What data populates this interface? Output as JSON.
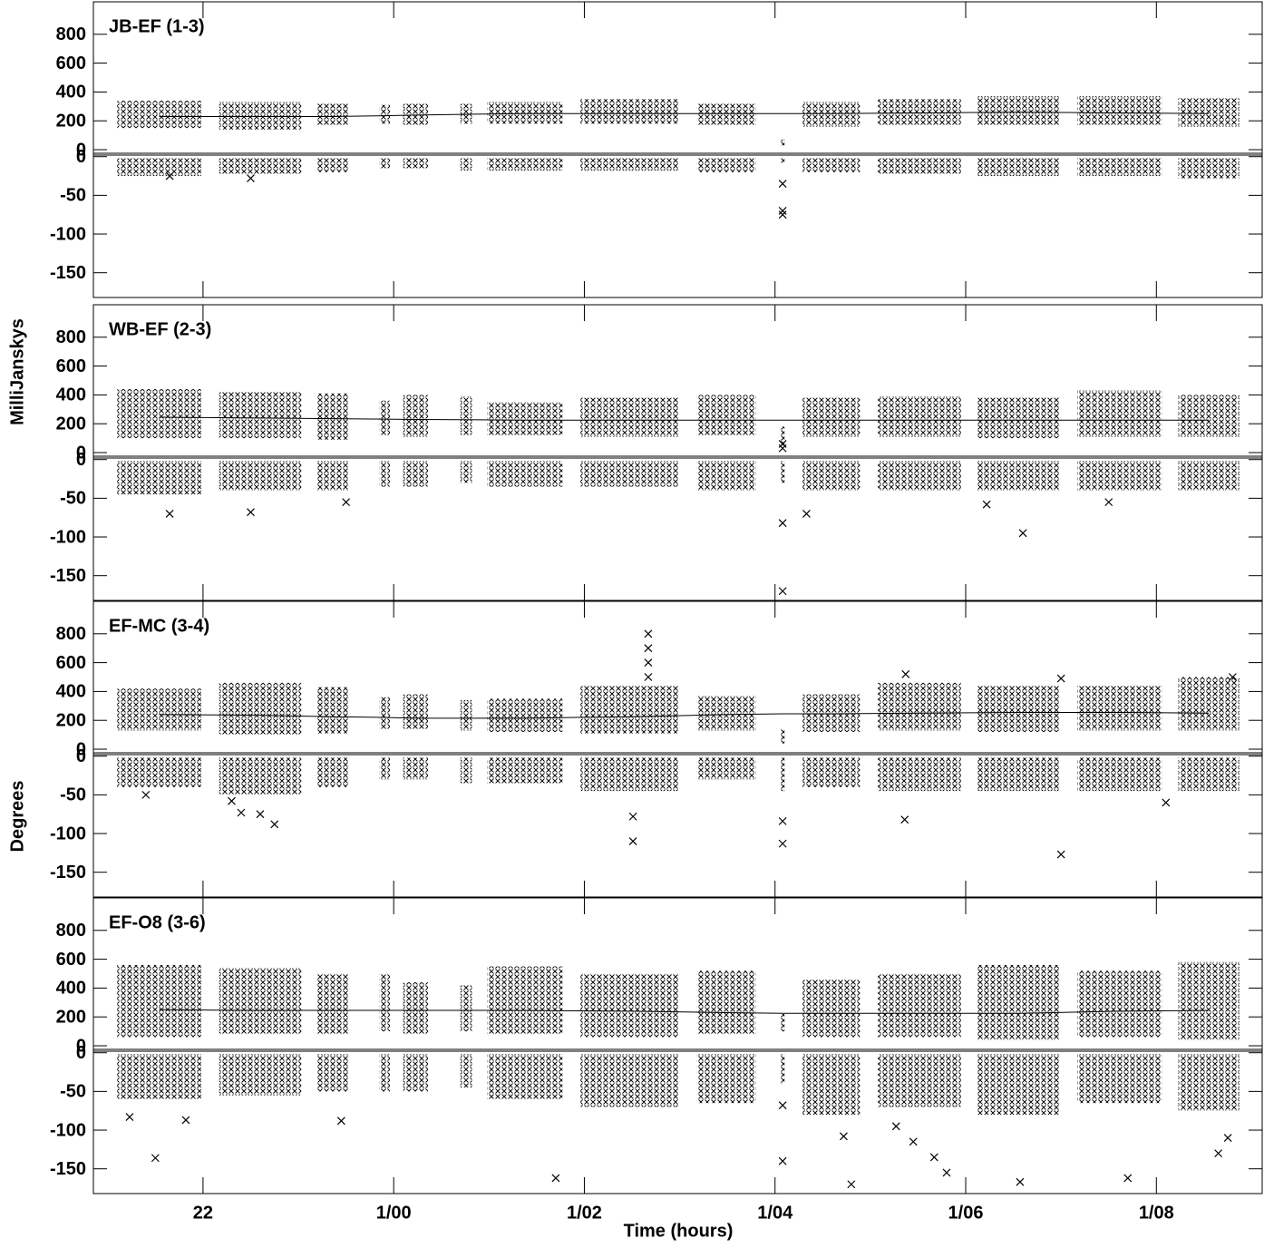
{
  "chart_data": {
    "type": "vplot",
    "xlabel": "Time (hours)",
    "ylabel_top": "MilliJanskys",
    "ylabel_bottom": "Degrees",
    "xlim": [
      20.85,
      33.11
    ],
    "xticks": [
      22,
      {
        "value": 24,
        "label": "1/00"
      },
      {
        "value": 26,
        "label": "1/02"
      },
      {
        "value": 28,
        "label": "1/04"
      },
      {
        "value": 30,
        "label": "1/06"
      },
      {
        "value": 32,
        "label": "1/08"
      }
    ],
    "amp_ylim": [
      -25,
      1025
    ],
    "amp_yticks": [
      0,
      200,
      400,
      600,
      800
    ],
    "phase_ylim": [
      -182,
      2
    ],
    "phase_yticks": [
      0,
      -50,
      -100,
      -150
    ],
    "scan_start": [
      21.1,
      22.17,
      23.19,
      23.85,
      24.1,
      24.7,
      24.98,
      25.96,
      27.18,
      28.06,
      28.29,
      29.08,
      30.12,
      31.17,
      32.23
    ],
    "scan_end": [
      21.98,
      23.03,
      23.52,
      23.96,
      24.36,
      24.82,
      25.77,
      26.99,
      27.8,
      28.1,
      28.89,
      29.95,
      30.99,
      32.06,
      32.87
    ],
    "model_x": [
      21.54,
      22.6,
      23.36,
      23.9,
      24.23,
      24.76,
      25.38,
      26.48,
      27.49,
      28.08,
      28.59,
      29.52,
      30.56,
      31.62,
      32.55
    ],
    "panels": [
      {
        "title": "JB-EF (1-3)",
        "amp_low": [
          150,
          140,
          170,
          180,
          170,
          180,
          180,
          180,
          170,
          30,
          160,
          170,
          170,
          170,
          160
        ],
        "amp_high": [
          340,
          330,
          320,
          310,
          320,
          320,
          330,
          350,
          320,
          70,
          330,
          350,
          370,
          370,
          360
        ],
        "amp_model": [
          230,
          230,
          230,
          235,
          240,
          245,
          250,
          250,
          250,
          250,
          250,
          255,
          260,
          255,
          250
        ],
        "phase_low": [
          -25,
          -22,
          -20,
          -15,
          -15,
          -18,
          -18,
          -18,
          -20,
          -8,
          -20,
          -22,
          -25,
          -25,
          -28
        ],
        "phase_high": [
          -2,
          -2,
          -2,
          -2,
          -2,
          -2,
          -2,
          -2,
          -2,
          -2,
          -2,
          -2,
          -2,
          -2,
          -2
        ],
        "amp_outliers": {
          "x": [],
          "values": []
        },
        "phase_outliers": {
          "x": [
            28.08,
            28.08,
            28.08,
            21.65,
            22.5
          ],
          "values": [
            -35,
            -70,
            -75,
            -25,
            -28
          ]
        }
      },
      {
        "title": "WB-EF (2-3)",
        "amp_low": [
          100,
          100,
          90,
          120,
          110,
          120,
          120,
          110,
          120,
          40,
          110,
          110,
          100,
          110,
          110
        ],
        "amp_high": [
          440,
          420,
          410,
          360,
          400,
          390,
          350,
          380,
          400,
          180,
          380,
          390,
          380,
          430,
          400
        ],
        "amp_model": [
          245,
          240,
          235,
          232,
          230,
          228,
          225,
          225,
          225,
          225,
          225,
          225,
          225,
          225,
          225
        ],
        "phase_low": [
          -45,
          -40,
          -40,
          -35,
          -35,
          -30,
          -35,
          -35,
          -40,
          -30,
          -40,
          -40,
          -40,
          -40,
          -40
        ],
        "phase_high": [
          -2,
          -2,
          -2,
          -2,
          -2,
          -2,
          -2,
          -2,
          -2,
          -2,
          -2,
          -2,
          -2,
          -2,
          -2
        ],
        "amp_outliers": {
          "x": [
            28.08,
            28.08
          ],
          "values": [
            60,
            30
          ]
        },
        "phase_outliers": {
          "x": [
            21.65,
            22.5,
            28.08,
            28.08,
            28.33,
            30.22,
            30.6,
            23.5,
            31.5
          ],
          "values": [
            -70,
            -68,
            -82,
            -170,
            -70,
            -58,
            -95,
            -55,
            -55
          ]
        }
      },
      {
        "title": "EF-MC (3-4)",
        "amp_low": [
          130,
          100,
          110,
          140,
          140,
          130,
          120,
          110,
          130,
          40,
          120,
          130,
          120,
          130,
          130
        ],
        "amp_high": [
          420,
          460,
          430,
          360,
          380,
          340,
          350,
          440,
          370,
          140,
          380,
          460,
          440,
          440,
          500
        ],
        "amp_model": [
          240,
          235,
          225,
          220,
          215,
          215,
          215,
          225,
          240,
          245,
          245,
          250,
          255,
          255,
          250
        ],
        "phase_low": [
          -40,
          -50,
          -40,
          -30,
          -30,
          -35,
          -35,
          -45,
          -30,
          -45,
          -40,
          -45,
          -45,
          -45,
          -45
        ],
        "phase_high": [
          -2,
          -2,
          -2,
          -2,
          -2,
          -2,
          -2,
          -2,
          -2,
          -2,
          -2,
          -2,
          -2,
          -2,
          -2
        ],
        "amp_outliers": {
          "x": [
            26.67,
            26.67,
            26.67,
            26.67,
            29.37,
            31.0,
            32.8
          ],
          "values": [
            800,
            700,
            600,
            500,
            520,
            490,
            500
          ]
        },
        "phase_outliers": {
          "x": [
            22.3,
            22.4,
            22.6,
            22.75,
            26.51,
            26.51,
            28.08,
            28.08,
            29.36,
            31.0,
            32.1,
            21.4
          ],
          "values": [
            -58,
            -73,
            -75,
            -88,
            -78,
            -110,
            -84,
            -113,
            -82,
            -127,
            -60,
            -50
          ]
        }
      },
      {
        "title": "EF-O8 (3-6)",
        "amp_low": [
          60,
          80,
          80,
          100,
          80,
          100,
          80,
          60,
          80,
          100,
          60,
          60,
          40,
          60,
          40
        ],
        "amp_high": [
          560,
          540,
          500,
          500,
          440,
          420,
          550,
          500,
          520,
          220,
          460,
          500,
          560,
          520,
          580
        ],
        "amp_model": [
          250,
          245,
          245,
          245,
          245,
          245,
          245,
          240,
          230,
          225,
          225,
          225,
          225,
          240,
          245
        ],
        "phase_low": [
          -60,
          -55,
          -50,
          -50,
          -50,
          -45,
          -60,
          -70,
          -65,
          -40,
          -80,
          -70,
          -80,
          -65,
          -75
        ],
        "phase_high": [
          -2,
          -2,
          -2,
          -2,
          -2,
          -2,
          -2,
          -2,
          -2,
          -2,
          -2,
          -2,
          -2,
          -2,
          -2
        ],
        "amp_outliers": {
          "x": [],
          "values": []
        },
        "phase_outliers": {
          "x": [
            21.23,
            21.5,
            21.82,
            23.45,
            25.7,
            28.08,
            28.08,
            28.72,
            28.8,
            29.27,
            29.45,
            29.67,
            29.8,
            30.57,
            31.7,
            32.65,
            32.75
          ],
          "values": [
            -83,
            -136,
            -87,
            -88,
            -162,
            -140,
            -68,
            -108,
            -170,
            -95,
            -115,
            -135,
            -155,
            -167,
            -162,
            -130,
            -110
          ]
        }
      }
    ]
  }
}
